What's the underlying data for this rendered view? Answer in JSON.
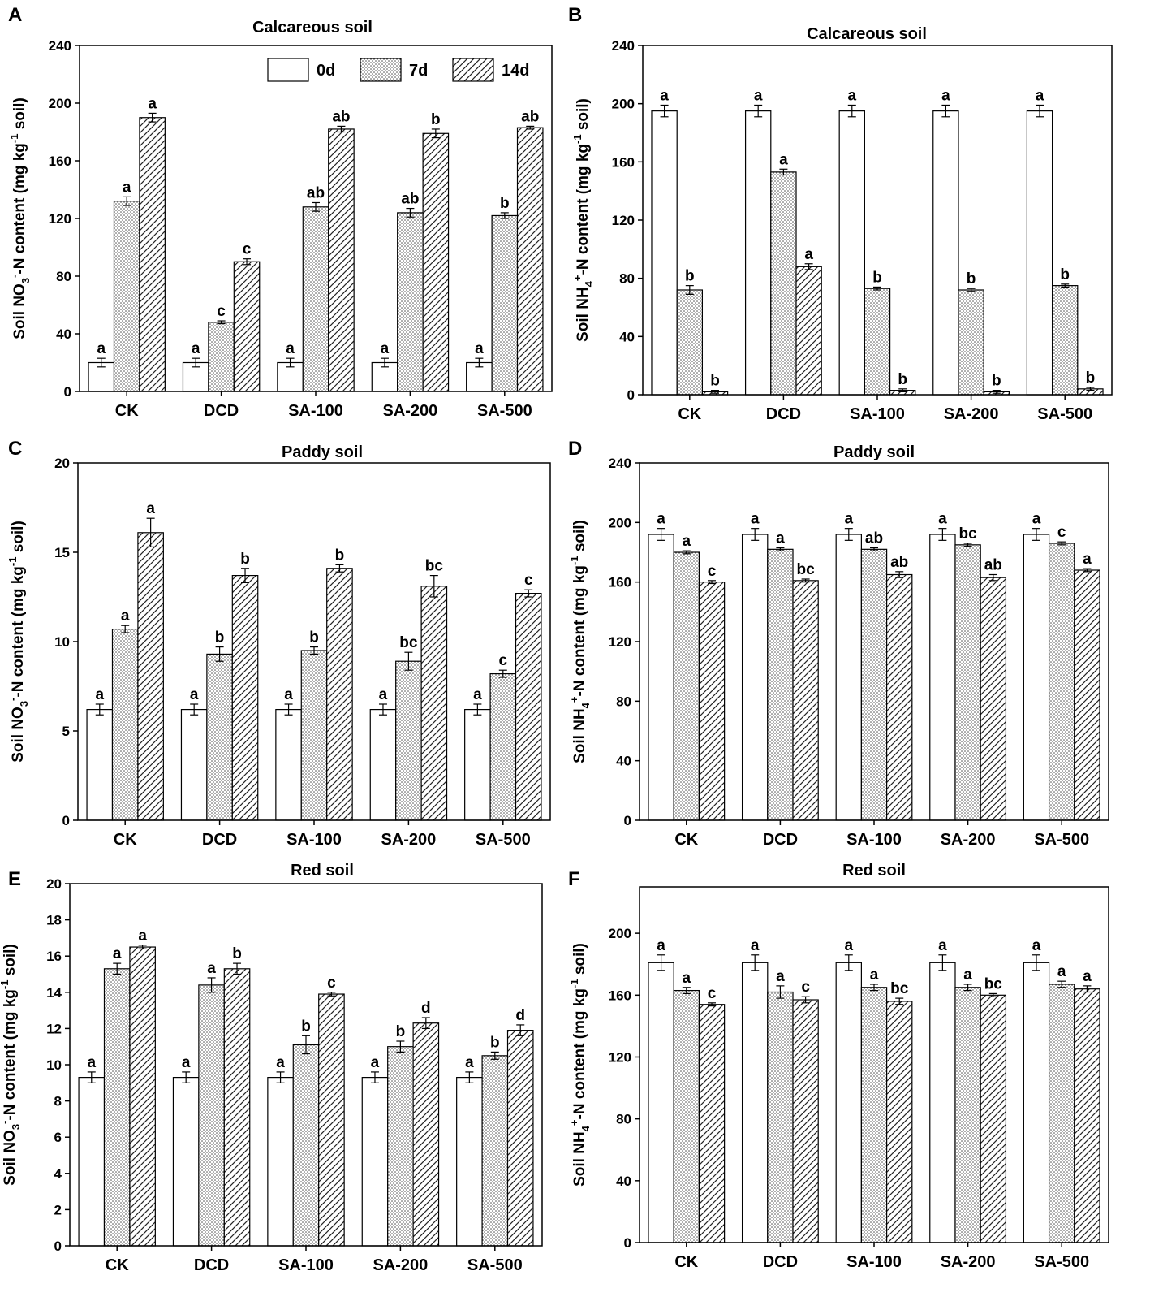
{
  "figure": {
    "legend": [
      {
        "key": "0d",
        "label": "0d"
      },
      {
        "key": "7d",
        "label": "7d"
      },
      {
        "key": "14d",
        "label": "14d"
      }
    ]
  },
  "chart_data": [
    {
      "panel": "A",
      "type": "bar",
      "title": "Calcareous soil",
      "ylabel": "Soil NO3--N content (mg kg-1 soil)",
      "ylabel_parts": {
        "pre": "Soil NO",
        "sub": "3",
        "sup": "-",
        "mid": "-N content (mg kg",
        "sup2": "-1",
        "post": " soil)"
      },
      "ylim": [
        0,
        240
      ],
      "yticks": [
        0,
        40,
        80,
        120,
        160,
        200,
        240
      ],
      "categories": [
        "CK",
        "DCD",
        "SA-100",
        "SA-200",
        "SA-500"
      ],
      "legend_position": "top-right",
      "series": [
        {
          "name": "0d",
          "values": [
            20,
            20,
            20,
            20,
            20
          ],
          "errors": [
            3,
            3,
            3,
            3,
            3
          ],
          "labels": [
            "a",
            "a",
            "a",
            "a",
            "a"
          ]
        },
        {
          "name": "7d",
          "values": [
            132,
            48,
            128,
            124,
            122
          ],
          "errors": [
            3,
            1,
            3,
            3,
            2
          ],
          "labels": [
            "a",
            "c",
            "ab",
            "ab",
            "b"
          ]
        },
        {
          "name": "14d",
          "values": [
            190,
            90,
            182,
            179,
            183
          ],
          "errors": [
            3,
            2,
            2,
            3,
            1
          ],
          "labels": [
            "a",
            "c",
            "ab",
            "b",
            "ab"
          ]
        }
      ]
    },
    {
      "panel": "B",
      "type": "bar",
      "title": "Calcareous soil",
      "ylabel": "Soil NH4+-N content (mg kg-1 soil)",
      "ylabel_parts": {
        "pre": "Soil NH",
        "sub": "4",
        "sup": "+",
        "mid": "-N content (mg kg",
        "sup2": "-1",
        "post": " soil)"
      },
      "ylim": [
        0,
        240
      ],
      "yticks": [
        0,
        40,
        80,
        120,
        160,
        200,
        240
      ],
      "categories": [
        "CK",
        "DCD",
        "SA-100",
        "SA-200",
        "SA-500"
      ],
      "series": [
        {
          "name": "0d",
          "values": [
            195,
            195,
            195,
            195,
            195
          ],
          "errors": [
            4,
            4,
            4,
            4,
            4
          ],
          "labels": [
            "a",
            "a",
            "a",
            "a",
            "a"
          ]
        },
        {
          "name": "7d",
          "values": [
            72,
            153,
            73,
            72,
            75
          ],
          "errors": [
            3,
            2,
            1,
            1,
            1
          ],
          "labels": [
            "b",
            "a",
            "b",
            "b",
            "b"
          ]
        },
        {
          "name": "14d",
          "values": [
            2,
            88,
            3,
            2,
            4
          ],
          "errors": [
            1,
            2,
            1,
            1,
            1
          ],
          "labels": [
            "b",
            "a",
            "b",
            "b",
            "b"
          ]
        }
      ]
    },
    {
      "panel": "C",
      "type": "bar",
      "title": "Paddy soil",
      "ylabel": "Soil NO3--N content (mg kg-1 soil)",
      "ylabel_parts": {
        "pre": "Soil NO",
        "sub": "3",
        "sup": "-",
        "mid": "-N content (mg kg",
        "sup2": "-1",
        "post": " soil)"
      },
      "ylim": [
        0,
        20
      ],
      "yticks": [
        0,
        5,
        10,
        15,
        20
      ],
      "categories": [
        "CK",
        "DCD",
        "SA-100",
        "SA-200",
        "SA-500"
      ],
      "series": [
        {
          "name": "0d",
          "values": [
            6.2,
            6.2,
            6.2,
            6.2,
            6.2
          ],
          "errors": [
            0.3,
            0.3,
            0.3,
            0.3,
            0.3
          ],
          "labels": [
            "a",
            "a",
            "a",
            "a",
            "a"
          ]
        },
        {
          "name": "7d",
          "values": [
            10.7,
            9.3,
            9.5,
            8.9,
            8.2
          ],
          "errors": [
            0.2,
            0.4,
            0.2,
            0.5,
            0.2
          ],
          "labels": [
            "a",
            "b",
            "b",
            "bc",
            "c"
          ]
        },
        {
          "name": "14d",
          "values": [
            16.1,
            13.7,
            14.1,
            13.1,
            12.7
          ],
          "errors": [
            0.8,
            0.4,
            0.2,
            0.6,
            0.2
          ],
          "labels": [
            "a",
            "b",
            "b",
            "bc",
            "c"
          ]
        }
      ]
    },
    {
      "panel": "D",
      "type": "bar",
      "title": "Paddy soil",
      "ylabel": "Soil NH4+-N content (mg kg-1 soil)",
      "ylabel_parts": {
        "pre": "Soil NH",
        "sub": "4",
        "sup": "+",
        "mid": "-N content (mg kg",
        "sup2": "-1",
        "post": " soil)"
      },
      "ylim": [
        0,
        240
      ],
      "yticks": [
        0,
        40,
        80,
        120,
        160,
        200,
        240
      ],
      "categories": [
        "CK",
        "DCD",
        "SA-100",
        "SA-200",
        "SA-500"
      ],
      "series": [
        {
          "name": "0d",
          "values": [
            192,
            192,
            192,
            192,
            192
          ],
          "errors": [
            4,
            4,
            4,
            4,
            4
          ],
          "labels": [
            "a",
            "a",
            "a",
            "a",
            "a"
          ]
        },
        {
          "name": "7d",
          "values": [
            180,
            182,
            182,
            185,
            186
          ],
          "errors": [
            1,
            1,
            1,
            1,
            1
          ],
          "labels": [
            "a",
            "a",
            "ab",
            "bc",
            "c"
          ]
        },
        {
          "name": "14d",
          "values": [
            160,
            161,
            165,
            163,
            168
          ],
          "errors": [
            1,
            1,
            2,
            2,
            1
          ],
          "labels": [
            "c",
            "bc",
            "ab",
            "ab",
            "a"
          ]
        }
      ]
    },
    {
      "panel": "E",
      "type": "bar",
      "title": "Red soil",
      "ylabel": "Soil NO3--N content (mg kg-1 soil)",
      "ylabel_parts": {
        "pre": "Soil NO",
        "sub": "3",
        "sup": "-",
        "mid": "-N content (mg kg",
        "sup2": "-1",
        "post": " soil)"
      },
      "ylim": [
        0,
        20
      ],
      "yticks": [
        0,
        2,
        4,
        6,
        8,
        10,
        12,
        14,
        16,
        18,
        20
      ],
      "categories": [
        "CK",
        "DCD",
        "SA-100",
        "SA-200",
        "SA-500"
      ],
      "series": [
        {
          "name": "0d",
          "values": [
            9.3,
            9.3,
            9.3,
            9.3,
            9.3
          ],
          "errors": [
            0.3,
            0.3,
            0.3,
            0.3,
            0.3
          ],
          "labels": [
            "a",
            "a",
            "a",
            "a",
            "a"
          ]
        },
        {
          "name": "7d",
          "values": [
            15.3,
            14.4,
            11.1,
            11.0,
            10.5
          ],
          "errors": [
            0.3,
            0.4,
            0.5,
            0.3,
            0.2
          ],
          "labels": [
            "a",
            "a",
            "b",
            "b",
            "b"
          ]
        },
        {
          "name": "14d",
          "values": [
            16.5,
            15.3,
            13.9,
            12.3,
            11.9
          ],
          "errors": [
            0.1,
            0.3,
            0.1,
            0.3,
            0.3
          ],
          "labels": [
            "a",
            "b",
            "c",
            "d",
            "d"
          ]
        }
      ]
    },
    {
      "panel": "F",
      "type": "bar",
      "title": "Red soil",
      "ylabel": "Soil NH4+-N content (mg kg-1 soil)",
      "ylabel_parts": {
        "pre": "Soil NH",
        "sub": "4",
        "sup": "+",
        "mid": "-N content (mg kg",
        "sup2": "-1",
        "post": " soil)"
      },
      "ylim": [
        0,
        230
      ],
      "yticks": [
        0,
        40,
        80,
        120,
        160,
        200
      ],
      "categories": [
        "CK",
        "DCD",
        "SA-100",
        "SA-200",
        "SA-500"
      ],
      "series": [
        {
          "name": "0d",
          "values": [
            181,
            181,
            181,
            181,
            181
          ],
          "errors": [
            5,
            5,
            5,
            5,
            5
          ],
          "labels": [
            "a",
            "a",
            "a",
            "a",
            "a"
          ]
        },
        {
          "name": "7d",
          "values": [
            163,
            162,
            165,
            165,
            167
          ],
          "errors": [
            2,
            4,
            2,
            2,
            2
          ],
          "labels": [
            "a",
            "a",
            "a",
            "a",
            "a"
          ]
        },
        {
          "name": "14d",
          "values": [
            154,
            157,
            156,
            160,
            164
          ],
          "errors": [
            1,
            2,
            2,
            1,
            2
          ],
          "labels": [
            "c",
            "c",
            "bc",
            "bc",
            "a"
          ]
        }
      ]
    }
  ]
}
